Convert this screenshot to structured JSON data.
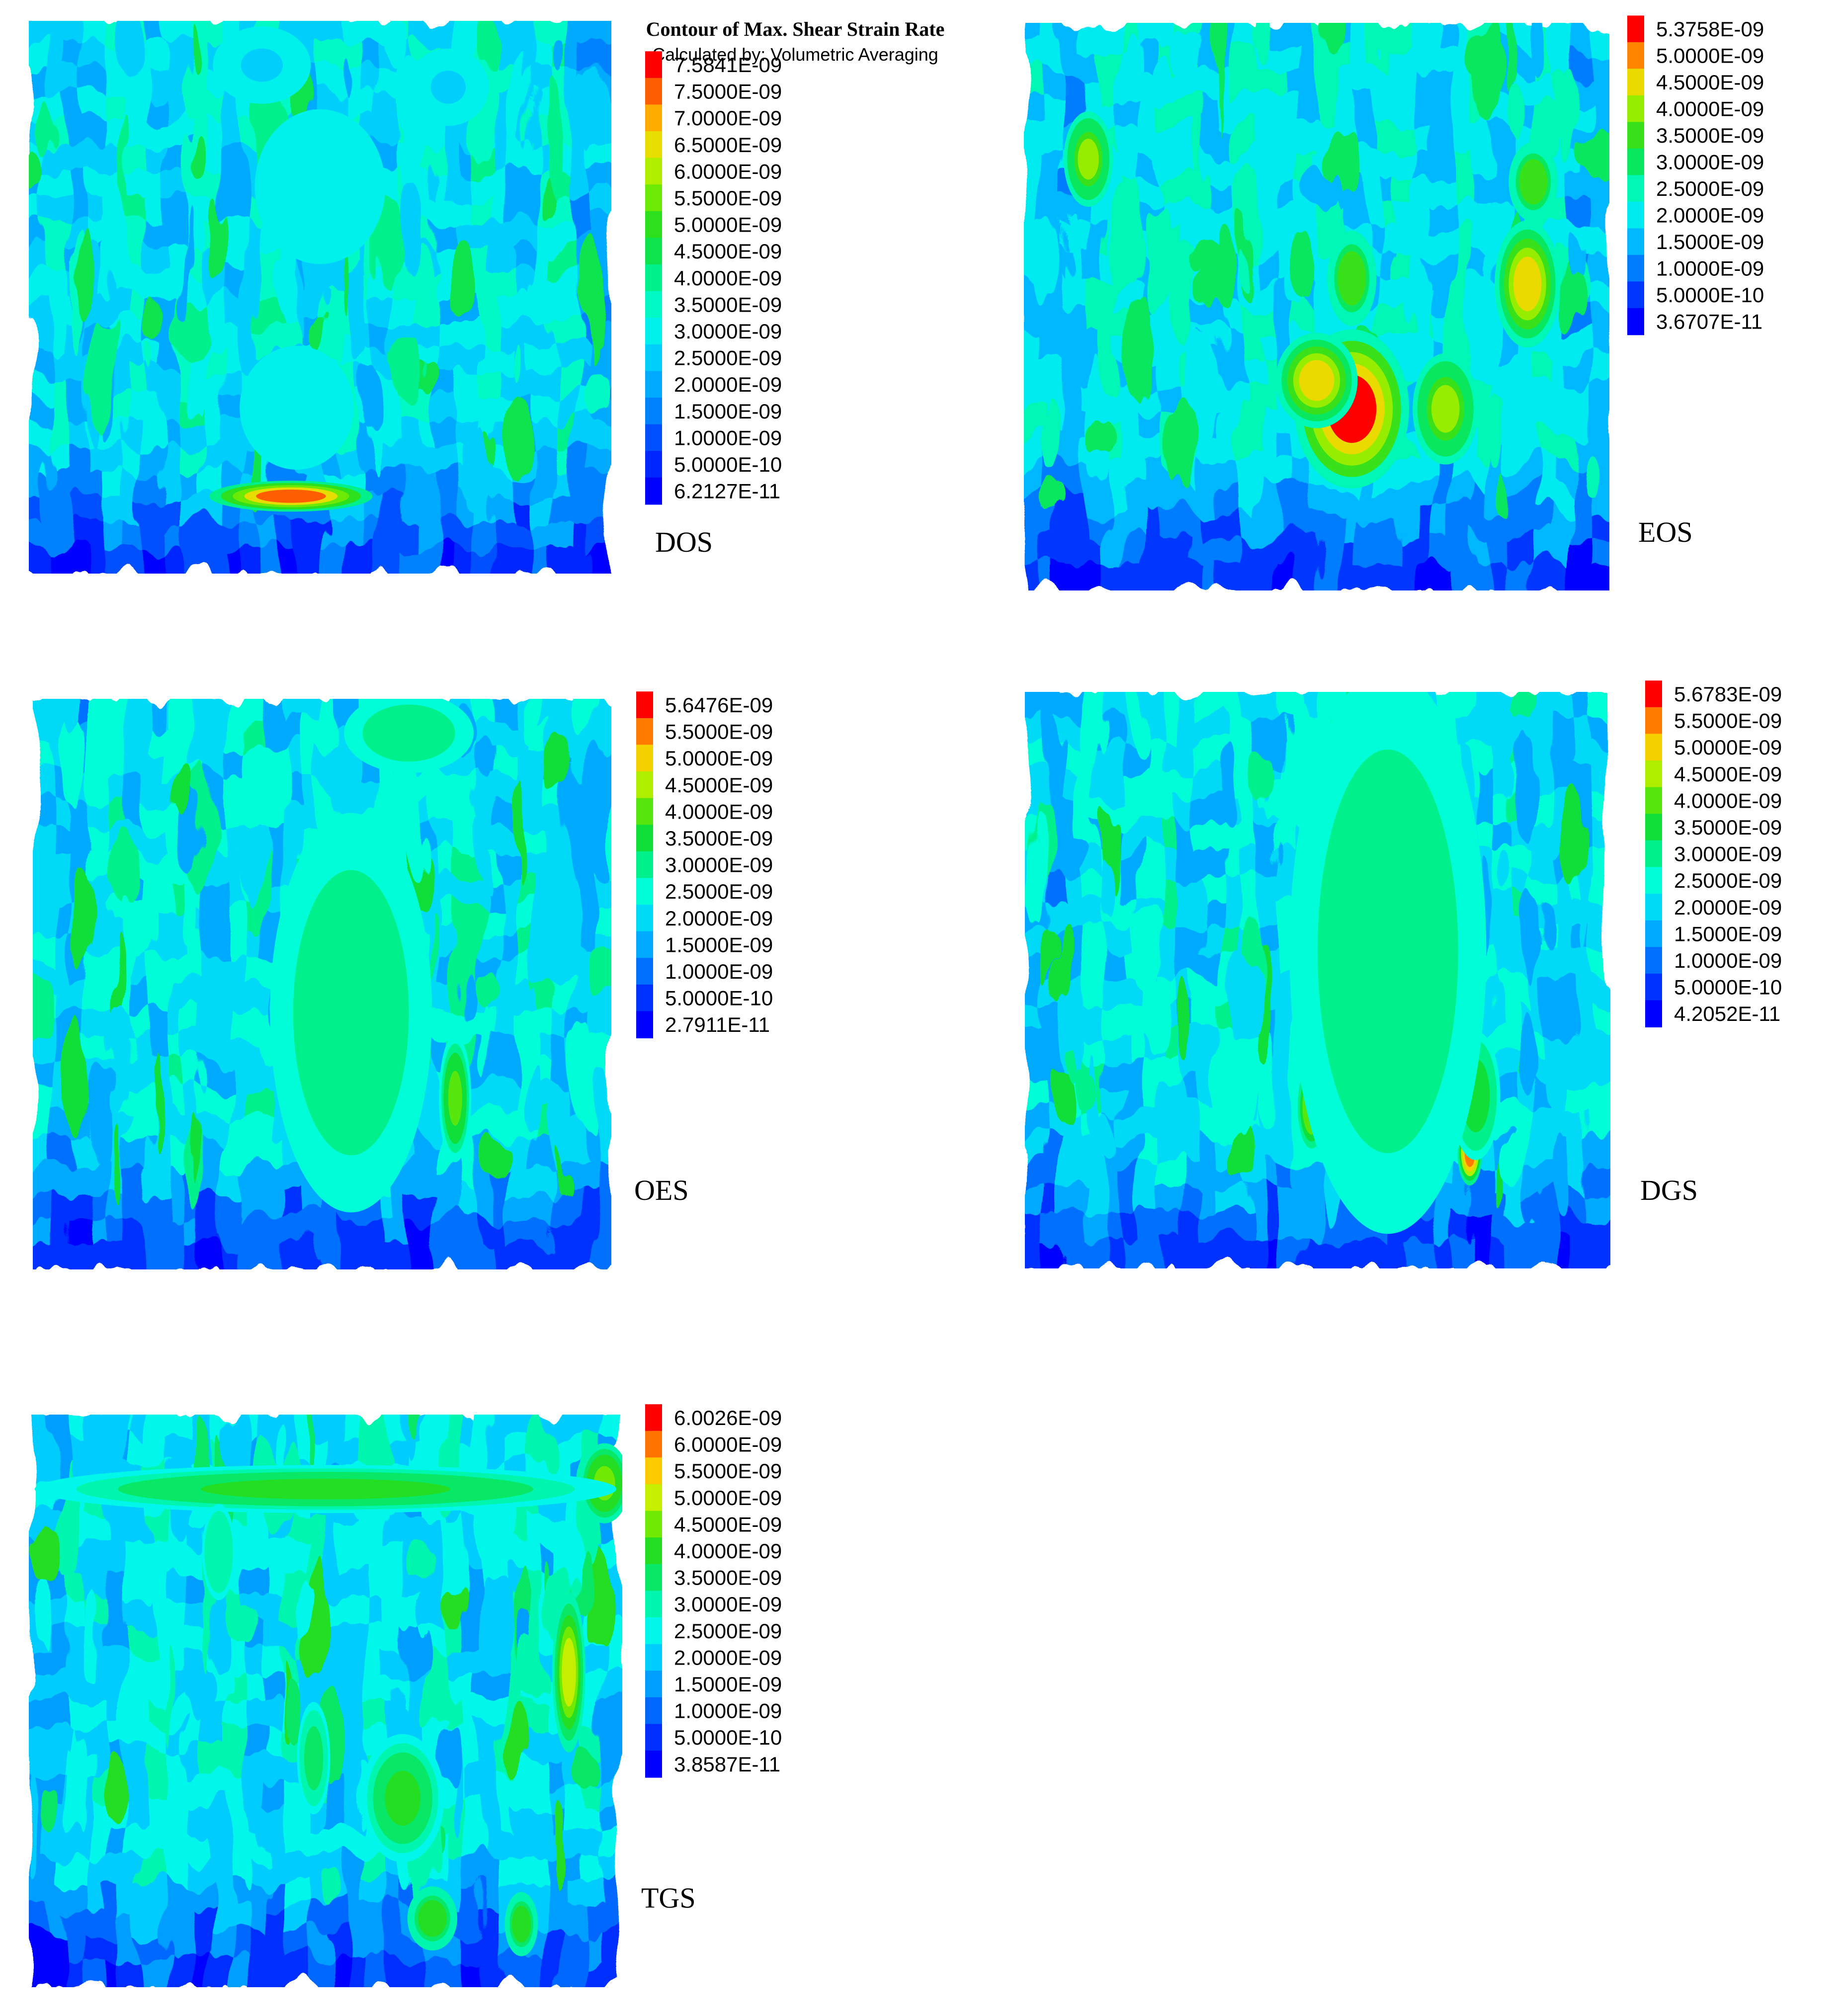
{
  "chart_data": [
    {
      "type": "heatmap",
      "label": "DOS",
      "title": "Contour of Max. Shear Strain Rate",
      "subtitle": "Calculated by: Volumetric Averaging",
      "legend_levels": [
        "7.5841E-09",
        "7.5000E-09",
        "7.0000E-09",
        "6.5000E-09",
        "6.0000E-09",
        "5.5000E-09",
        "5.0000E-09",
        "4.5000E-09",
        "4.0000E-09",
        "3.5000E-09",
        "3.0000E-09",
        "2.5000E-09",
        "2.0000E-09",
        "1.5000E-09",
        "1.0000E-09",
        "5.0000E-10",
        "6.2127E-11"
      ],
      "max": 7.5841e-09,
      "min": 6.2127e-11,
      "legend_placement": "right",
      "hotspots": [
        {
          "x": 0.45,
          "y": 0.86,
          "level": 7e-09,
          "rx": 0.1,
          "ry": 0.02
        },
        {
          "x": 0.46,
          "y": 0.7,
          "level": 3e-09,
          "rx": 0.07,
          "ry": 0.08
        },
        {
          "x": 0.5,
          "y": 0.3,
          "level": 2.8e-09,
          "rx": 0.08,
          "ry": 0.1
        },
        {
          "x": 0.4,
          "y": 0.08,
          "level": 2.6e-09,
          "rx": 0.06,
          "ry": 0.05
        },
        {
          "x": 0.72,
          "y": 0.12,
          "level": 2.6e-09,
          "rx": 0.05,
          "ry": 0.05
        }
      ]
    },
    {
      "type": "heatmap",
      "label": "EOS",
      "legend_levels": [
        "5.3758E-09",
        "5.0000E-09",
        "4.5000E-09",
        "4.0000E-09",
        "3.5000E-09",
        "3.0000E-09",
        "2.5000E-09",
        "2.0000E-09",
        "1.5000E-09",
        "1.0000E-09",
        "5.0000E-10",
        "3.6707E-11"
      ],
      "max": 5.3758e-09,
      "min": 3.6707e-11,
      "legend_placement": "right",
      "hotspots": [
        {
          "x": 0.56,
          "y": 0.68,
          "level": 5.2e-09,
          "rx": 0.07,
          "ry": 0.1
        },
        {
          "x": 0.5,
          "y": 0.63,
          "level": 4.5e-09,
          "rx": 0.05,
          "ry": 0.06
        },
        {
          "x": 0.86,
          "y": 0.46,
          "level": 4.5e-09,
          "rx": 0.04,
          "ry": 0.08
        },
        {
          "x": 0.11,
          "y": 0.24,
          "level": 3.8e-09,
          "rx": 0.03,
          "ry": 0.06
        },
        {
          "x": 0.72,
          "y": 0.68,
          "level": 3.8e-09,
          "rx": 0.04,
          "ry": 0.07
        },
        {
          "x": 0.87,
          "y": 0.28,
          "level": 3.5e-09,
          "rx": 0.03,
          "ry": 0.05
        },
        {
          "x": 0.56,
          "y": 0.45,
          "level": 3.5e-09,
          "rx": 0.03,
          "ry": 0.06
        }
      ]
    },
    {
      "type": "heatmap",
      "label": "OES",
      "legend_levels": [
        "5.6476E-09",
        "5.5000E-09",
        "5.0000E-09",
        "4.5000E-09",
        "4.0000E-09",
        "3.5000E-09",
        "3.0000E-09",
        "2.5000E-09",
        "2.0000E-09",
        "1.5000E-09",
        "1.0000E-09",
        "5.0000E-10",
        "2.7911E-11"
      ],
      "max": 5.6476e-09,
      "min": 2.7911e-11,
      "legend_placement": "right",
      "hotspots": [
        {
          "x": 0.58,
          "y": 0.7,
          "level": 5.5e-09,
          "rx": 0.05,
          "ry": 0.1
        },
        {
          "x": 0.66,
          "y": 0.62,
          "level": 4.5e-09,
          "rx": 0.02,
          "ry": 0.04
        },
        {
          "x": 0.6,
          "y": 0.53,
          "level": 4.5e-09,
          "rx": 0.02,
          "ry": 0.04
        },
        {
          "x": 0.73,
          "y": 0.7,
          "level": 3.8e-09,
          "rx": 0.02,
          "ry": 0.08
        },
        {
          "x": 0.65,
          "y": 0.06,
          "level": 3e-09,
          "rx": 0.08,
          "ry": 0.05
        },
        {
          "x": 0.55,
          "y": 0.55,
          "level": 3e-09,
          "rx": 0.1,
          "ry": 0.25
        }
      ]
    },
    {
      "type": "heatmap",
      "label": "DGS",
      "legend_levels": [
        "5.6783E-09",
        "5.5000E-09",
        "5.0000E-09",
        "4.5000E-09",
        "4.0000E-09",
        "3.5000E-09",
        "3.0000E-09",
        "2.5000E-09",
        "2.0000E-09",
        "1.5000E-09",
        "1.0000E-09",
        "5.0000E-10",
        "4.2052E-11"
      ],
      "max": 5.6783e-09,
      "min": 4.2052e-11,
      "legend_placement": "right",
      "hotspots": [
        {
          "x": 0.67,
          "y": 0.08,
          "level": 5.3e-09,
          "rx": 0.03,
          "ry": 0.03
        },
        {
          "x": 0.76,
          "y": 0.8,
          "level": 5.3e-09,
          "rx": 0.015,
          "ry": 0.04
        },
        {
          "x": 0.58,
          "y": 0.06,
          "level": 4.2e-09,
          "rx": 0.05,
          "ry": 0.03
        },
        {
          "x": 0.49,
          "y": 0.72,
          "level": 4e-09,
          "rx": 0.02,
          "ry": 0.06
        },
        {
          "x": 0.65,
          "y": 0.63,
          "level": 4e-09,
          "rx": 0.02,
          "ry": 0.05
        },
        {
          "x": 0.77,
          "y": 0.7,
          "level": 3.5e-09,
          "rx": 0.03,
          "ry": 0.08
        },
        {
          "x": 0.62,
          "y": 0.45,
          "level": 3e-09,
          "rx": 0.12,
          "ry": 0.35
        }
      ]
    },
    {
      "type": "heatmap",
      "label": "TGS",
      "legend_levels": [
        "6.0026E-09",
        "6.0000E-09",
        "5.5000E-09",
        "5.0000E-09",
        "4.5000E-09",
        "4.0000E-09",
        "3.5000E-09",
        "3.0000E-09",
        "2.5000E-09",
        "2.0000E-09",
        "1.5000E-09",
        "1.0000E-09",
        "5.0000E-10",
        "3.8587E-11"
      ],
      "max": 6.0026e-09,
      "min": 3.8587e-11,
      "legend_placement": "right",
      "hotspots": [
        {
          "x": 0.91,
          "y": 0.45,
          "level": 4.5e-09,
          "rx": 0.02,
          "ry": 0.1
        },
        {
          "x": 0.97,
          "y": 0.12,
          "level": 4.3e-09,
          "rx": 0.03,
          "ry": 0.05
        },
        {
          "x": 0.5,
          "y": 0.13,
          "level": 3.5e-09,
          "rx": 0.35,
          "ry": 0.03
        },
        {
          "x": 0.63,
          "y": 0.67,
          "level": 3.5e-09,
          "rx": 0.05,
          "ry": 0.08
        },
        {
          "x": 0.68,
          "y": 0.88,
          "level": 3.8e-09,
          "rx": 0.03,
          "ry": 0.04
        },
        {
          "x": 0.83,
          "y": 0.89,
          "level": 3.8e-09,
          "rx": 0.02,
          "ry": 0.04
        },
        {
          "x": 0.48,
          "y": 0.6,
          "level": 3.2e-09,
          "rx": 0.02,
          "ry": 0.07
        },
        {
          "x": 0.32,
          "y": 0.24,
          "level": 3e-09,
          "rx": 0.02,
          "ry": 0.06
        }
      ]
    }
  ]
}
